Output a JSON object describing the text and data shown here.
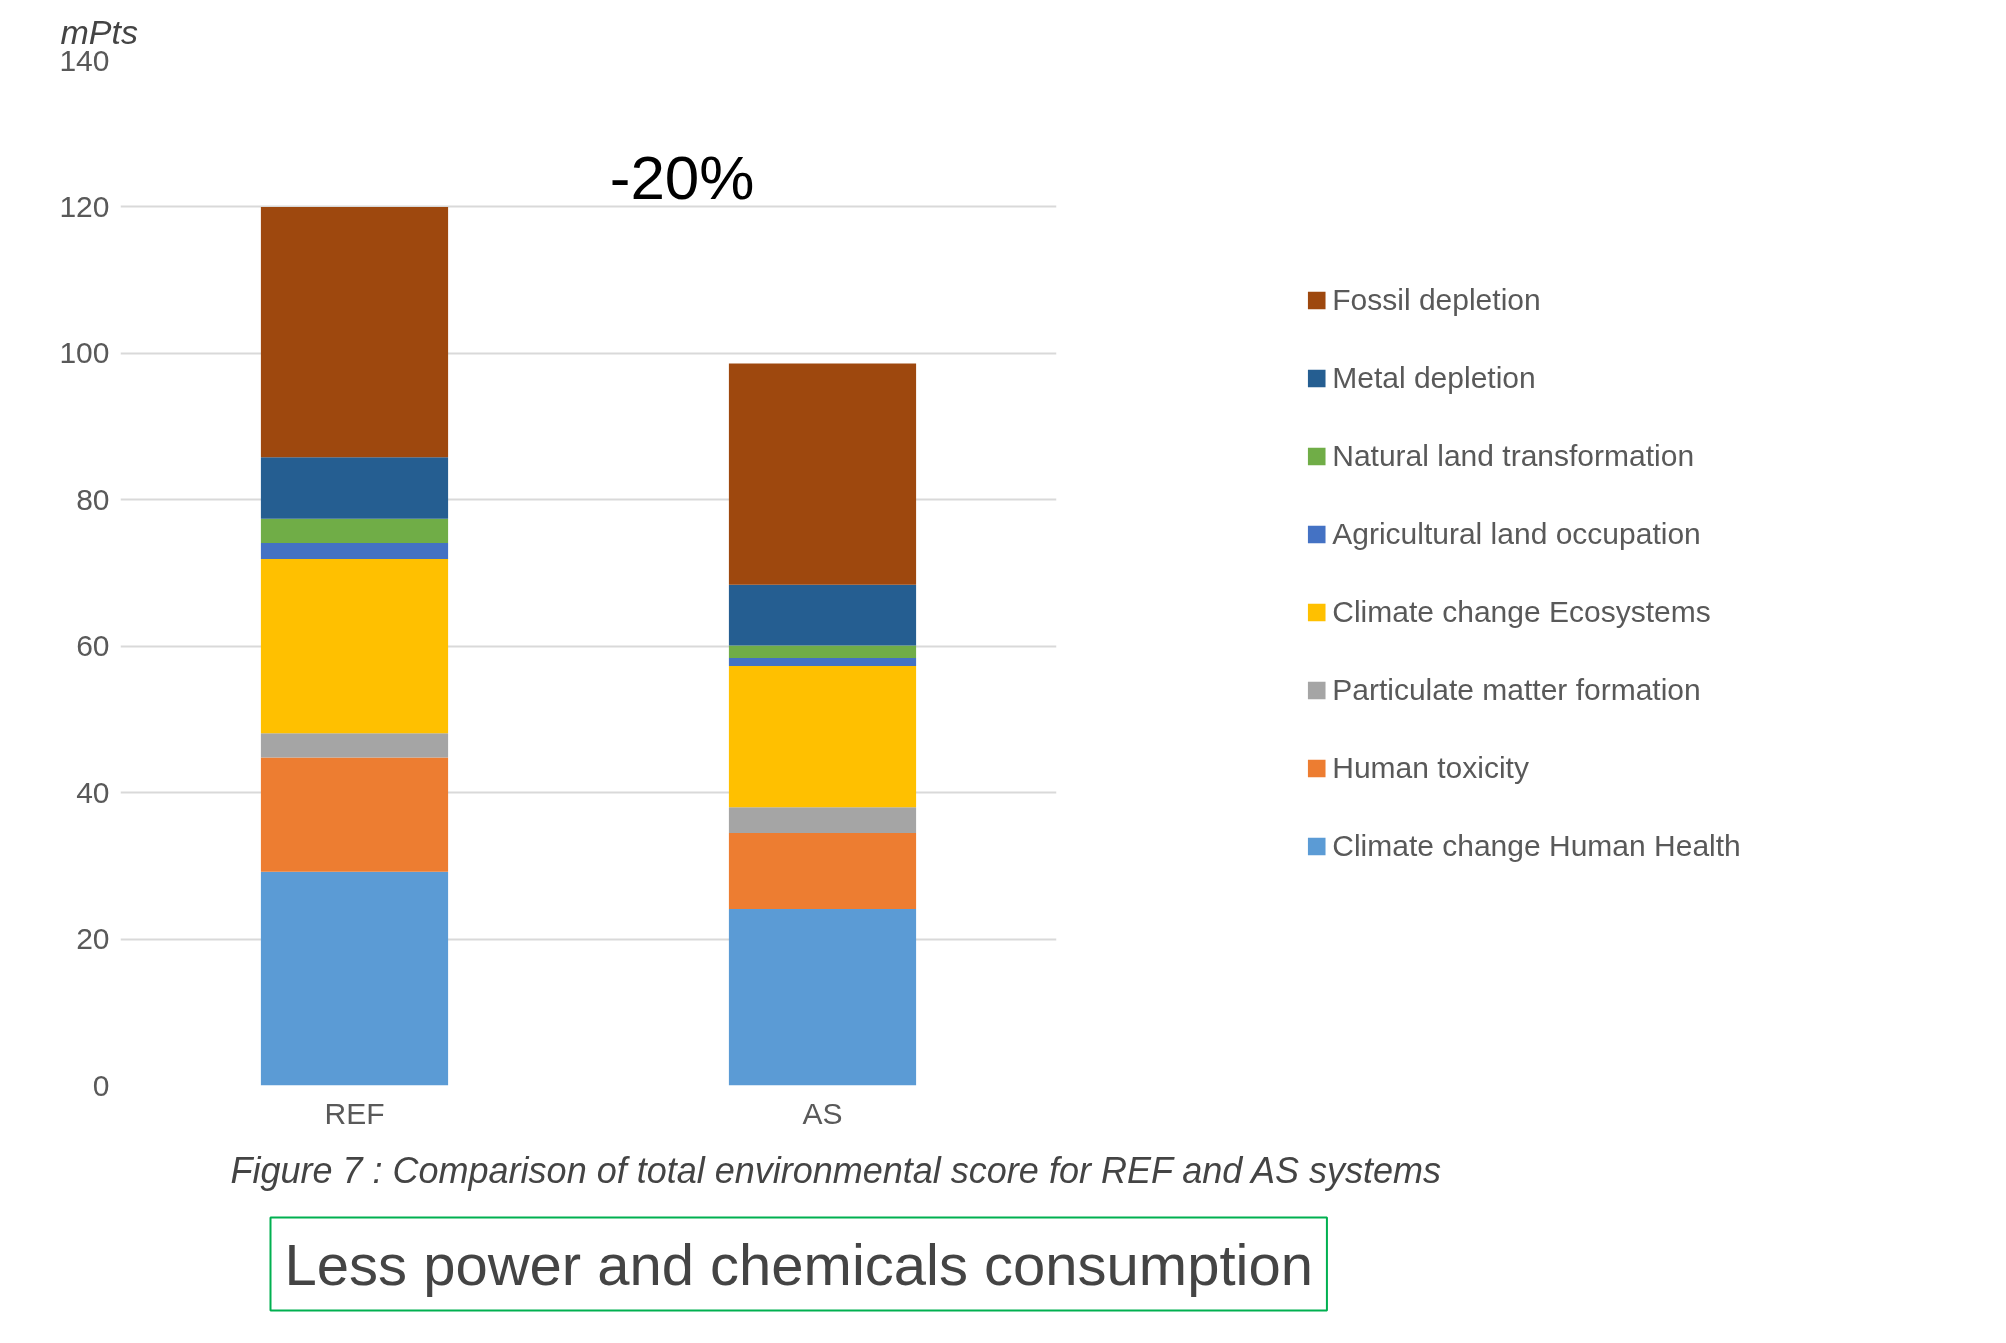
{
  "chart_data": {
    "type": "bar",
    "stacked": true,
    "ylabel": "mPts",
    "categories": [
      "REF",
      "AS"
    ],
    "series": [
      {
        "name": "Climate change Human Health",
        "color": "#5b9bd5",
        "values": [
          29.2,
          24.1
        ]
      },
      {
        "name": "Human toxicity",
        "color": "#ed7d31",
        "values": [
          15.6,
          10.4
        ]
      },
      {
        "name": "Particulate matter formation",
        "color": "#a5a5a5",
        "values": [
          3.3,
          3.5
        ]
      },
      {
        "name": "Climate change Ecosystems",
        "color": "#ffc000",
        "values": [
          23.8,
          19.3
        ]
      },
      {
        "name": "Agricultural land occupation",
        "color": "#4472c4",
        "values": [
          2.2,
          1.1
        ]
      },
      {
        "name": "Natural land transformation",
        "color": "#70ad47",
        "values": [
          3.3,
          1.7
        ]
      },
      {
        "name": "Metal depletion",
        "color": "#255e91",
        "values": [
          8.4,
          8.3
        ]
      },
      {
        "name": "Fossil depletion",
        "color": "#9e480e",
        "values": [
          34.2,
          30.2
        ]
      }
    ],
    "ylim": [
      0,
      140
    ],
    "yticks": [
      0,
      20,
      40,
      60,
      80,
      100,
      120,
      140
    ],
    "grid": "y",
    "legend": "right",
    "annotations": [
      "-20%",
      "Figure 7 : Comparison of total environmental score for REF and AS systems",
      "Less power and chemicals consumption"
    ]
  }
}
